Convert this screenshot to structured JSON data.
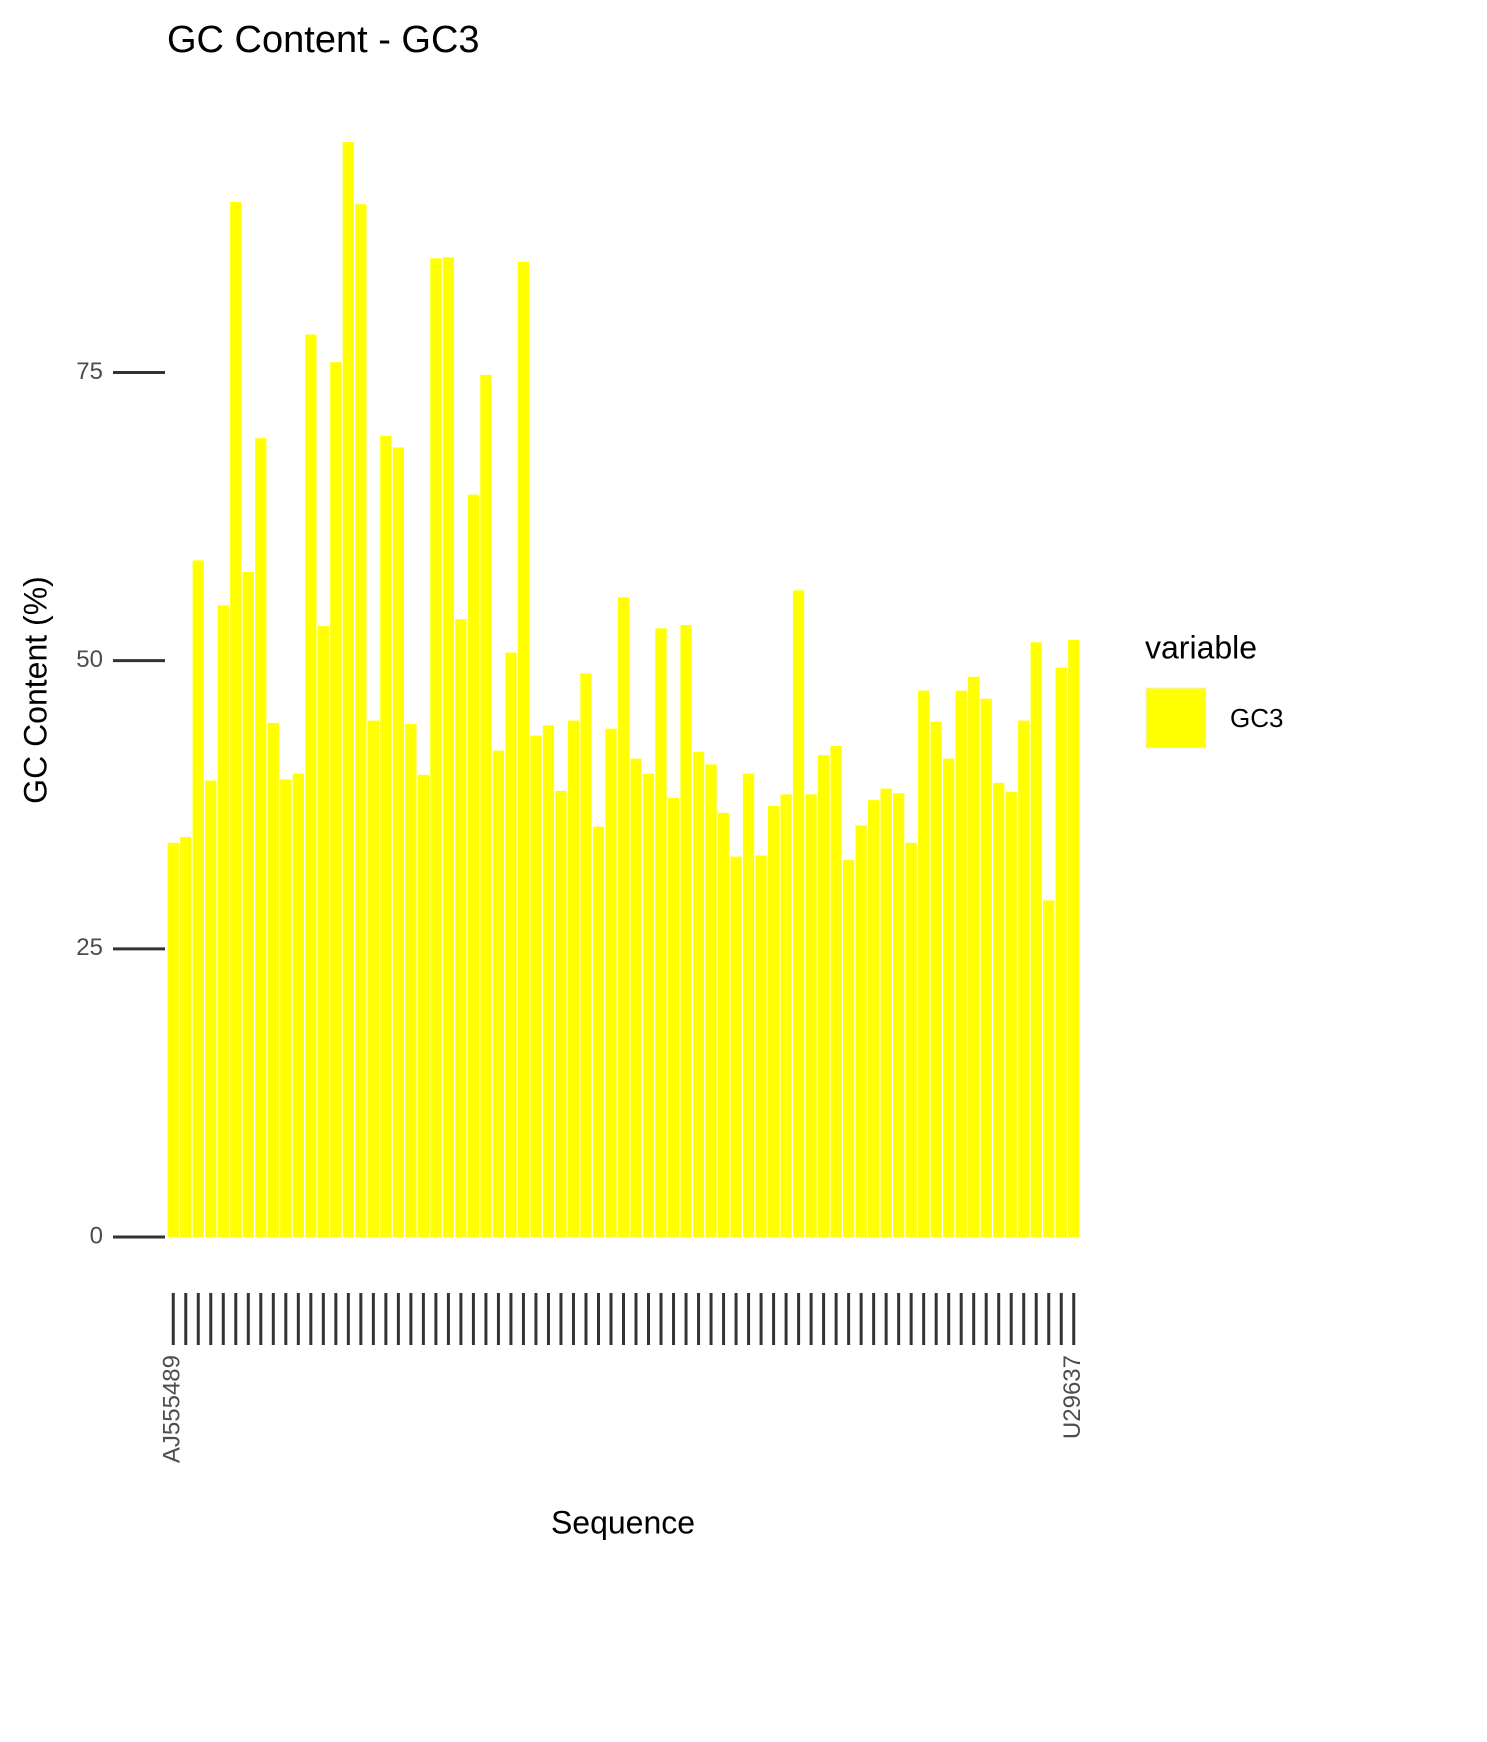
{
  "chart_data": {
    "type": "bar",
    "title": "GC Content - GC3",
    "x_label": "Sequence",
    "y_label": "GC Content (%)",
    "legend_title": "variable",
    "categories": [
      "AJ555489",
      null,
      null,
      null,
      null,
      null,
      null,
      null,
      null,
      null,
      null,
      null,
      null,
      null,
      null,
      null,
      null,
      null,
      null,
      null,
      null,
      null,
      null,
      null,
      null,
      null,
      null,
      null,
      null,
      null,
      null,
      null,
      null,
      null,
      null,
      null,
      null,
      null,
      null,
      null,
      null,
      null,
      null,
      null,
      null,
      null,
      null,
      null,
      null,
      null,
      null,
      null,
      null,
      null,
      null,
      null,
      null,
      null,
      null,
      null,
      null,
      null,
      null,
      null,
      null,
      null,
      null,
      null,
      null,
      null,
      null,
      null,
      "U29637"
    ],
    "series": [
      {
        "name": "GC3",
        "color": "#ffff00",
        "values": [
          34.2,
          34.7,
          58.7,
          39.6,
          54.8,
          89.8,
          57.7,
          69.3,
          44.6,
          39.7,
          40.2,
          78.3,
          53.0,
          75.9,
          95.0,
          89.6,
          44.8,
          69.5,
          68.5,
          44.5,
          40.1,
          84.9,
          85.0,
          53.6,
          64.4,
          74.8,
          42.2,
          50.7,
          84.6,
          43.5,
          44.4,
          38.7,
          44.8,
          48.9,
          35.6,
          44.1,
          55.5,
          41.5,
          40.2,
          52.8,
          38.1,
          53.1,
          42.1,
          41.0,
          36.8,
          33.0,
          40.2,
          33.1,
          37.4,
          38.4,
          56.1,
          38.4,
          41.8,
          42.6,
          32.7,
          35.7,
          37.9,
          38.9,
          38.5,
          34.2,
          47.4,
          44.7,
          41.5,
          47.4,
          48.6,
          46.7,
          39.4,
          38.6,
          44.8,
          51.6,
          29.2,
          49.4,
          51.8
        ]
      }
    ],
    "ylim": [
      0,
      95
    ],
    "yticks": [
      0,
      25,
      50,
      75
    ],
    "grid": false
  }
}
